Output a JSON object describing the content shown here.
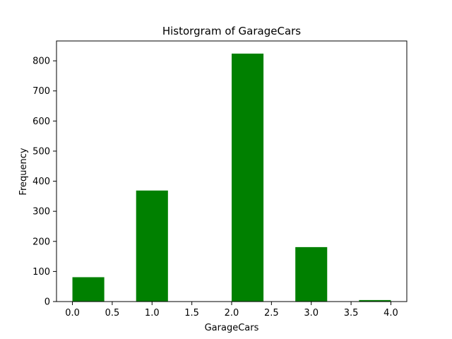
{
  "chart_data": {
    "type": "bar",
    "title": "Historgram of GarageCars",
    "xlabel": "GarageCars",
    "ylabel": "Frequency",
    "bar_color": "#008000",
    "xlim": [
      -0.2,
      4.2
    ],
    "ylim": [
      0,
      866
    ],
    "xticks": [
      0.0,
      0.5,
      1.0,
      1.5,
      2.0,
      2.5,
      3.0,
      3.5,
      4.0
    ],
    "xtick_labels": [
      "0.0",
      "0.5",
      "1.0",
      "1.5",
      "2.0",
      "2.5",
      "3.0",
      "3.5",
      "4.0"
    ],
    "yticks": [
      0,
      100,
      200,
      300,
      400,
      500,
      600,
      700,
      800
    ],
    "ytick_labels": [
      "0",
      "100",
      "200",
      "300",
      "400",
      "500",
      "600",
      "700",
      "800"
    ],
    "bins": [
      {
        "start": 0.0,
        "end": 0.4,
        "value": 81
      },
      {
        "start": 0.4,
        "end": 0.8,
        "value": 0
      },
      {
        "start": 0.8,
        "end": 1.2,
        "value": 369
      },
      {
        "start": 1.2,
        "end": 1.6,
        "value": 0
      },
      {
        "start": 1.6,
        "end": 2.0,
        "value": 0
      },
      {
        "start": 2.0,
        "end": 2.4,
        "value": 824
      },
      {
        "start": 2.4,
        "end": 2.8,
        "value": 0
      },
      {
        "start": 2.8,
        "end": 3.2,
        "value": 181
      },
      {
        "start": 3.2,
        "end": 3.6,
        "value": 0
      },
      {
        "start": 3.6,
        "end": 4.0,
        "value": 5
      }
    ],
    "grid": false,
    "legend": "none"
  }
}
